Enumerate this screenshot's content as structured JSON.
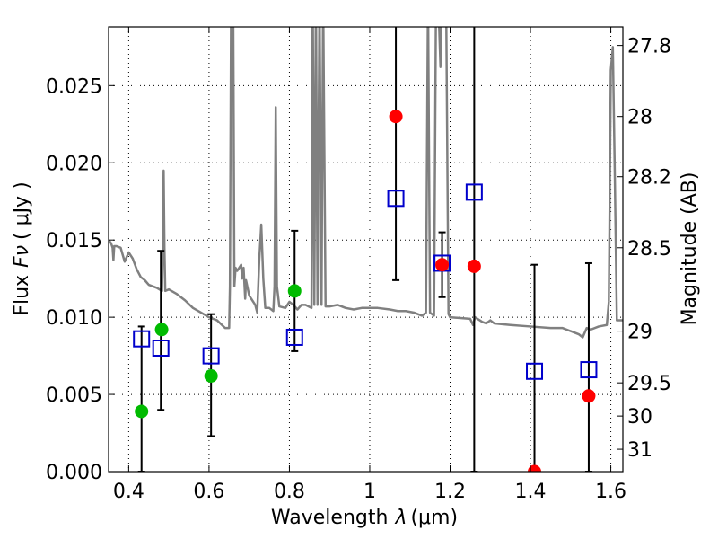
{
  "chart_data": {
    "type": "scatter",
    "title": "",
    "xlabel_text": "Wavelength",
    "xlabel_symbol": "λ",
    "xlabel_unit": "(μm)",
    "ylabel_text": "Flux",
    "ylabel_symbol": "Fν",
    "ylabel_unit": "( μJy )",
    "y2label": "Magnitude (AB)",
    "xlim": [
      0.35,
      1.63
    ],
    "ylim": [
      0.0,
      0.0288
    ],
    "grid": true,
    "x_ticks": [
      "0.4",
      "0.6",
      "0.8",
      "1",
      "1.2",
      "1.4",
      "1.6"
    ],
    "x_tick_values": [
      0.4,
      0.6,
      0.8,
      1.0,
      1.2,
      1.4,
      1.6
    ],
    "y_ticks": [
      "0.000",
      "0.005",
      "0.010",
      "0.015",
      "0.020",
      "0.025"
    ],
    "y_tick_values": [
      0.0,
      0.005,
      0.01,
      0.015,
      0.02,
      0.025
    ],
    "y2_ticks": [
      "27.8",
      "28",
      "28.2",
      "28.5",
      "29",
      "29.5",
      "30",
      "31"
    ],
    "y2_tick_flux": [
      0.0276,
      0.023,
      0.0191,
      0.0145,
      0.0091,
      0.00575,
      0.0036,
      0.00145
    ],
    "colors": {
      "model": "#808080",
      "observed": "#0000cc",
      "green": "#00bb00",
      "red": "#ff0000",
      "errorbar": "#000000"
    },
    "series": [
      {
        "kind": "model",
        "points": [
          [
            0.35,
            0.015
          ],
          [
            0.356,
            0.0148
          ],
          [
            0.36,
            0.0145
          ],
          [
            0.362,
            0.0137
          ],
          [
            0.364,
            0.0146
          ],
          [
            0.37,
            0.0146
          ],
          [
            0.38,
            0.0145
          ],
          [
            0.39,
            0.0136
          ],
          [
            0.4,
            0.0142
          ],
          [
            0.41,
            0.0138
          ],
          [
            0.42,
            0.0131
          ],
          [
            0.43,
            0.0126
          ],
          [
            0.44,
            0.0124
          ],
          [
            0.45,
            0.0121
          ],
          [
            0.47,
            0.0119
          ],
          [
            0.483,
            0.0117
          ],
          [
            0.485,
            0.0145
          ],
          [
            0.487,
            0.0195
          ],
          [
            0.489,
            0.0145
          ],
          [
            0.491,
            0.0117
          ],
          [
            0.5,
            0.0118
          ],
          [
            0.52,
            0.0115
          ],
          [
            0.54,
            0.0111
          ],
          [
            0.56,
            0.0106
          ],
          [
            0.58,
            0.0103
          ],
          [
            0.6,
            0.01
          ],
          [
            0.62,
            0.0098
          ],
          [
            0.64,
            0.0093
          ],
          [
            0.65,
            0.0093
          ],
          [
            0.652,
            0.012
          ],
          [
            0.655,
            0.031
          ],
          [
            0.66,
            0.031
          ],
          [
            0.663,
            0.012
          ],
          [
            0.666,
            0.0132
          ],
          [
            0.67,
            0.013
          ],
          [
            0.68,
            0.0134
          ],
          [
            0.682,
            0.0125
          ],
          [
            0.686,
            0.0132
          ],
          [
            0.69,
            0.0112
          ],
          [
            0.692,
            0.0124
          ],
          [
            0.7,
            0.0114
          ],
          [
            0.71,
            0.011
          ],
          [
            0.715,
            0.0108
          ],
          [
            0.72,
            0.0103
          ],
          [
            0.725,
            0.0137
          ],
          [
            0.73,
            0.016
          ],
          [
            0.735,
            0.0125
          ],
          [
            0.74,
            0.0106
          ],
          [
            0.75,
            0.0106
          ],
          [
            0.76,
            0.0104
          ],
          [
            0.763,
            0.012
          ],
          [
            0.766,
            0.0236
          ],
          [
            0.769,
            0.012
          ],
          [
            0.775,
            0.0107
          ],
          [
            0.79,
            0.0106
          ],
          [
            0.8,
            0.011
          ],
          [
            0.81,
            0.0108
          ],
          [
            0.82,
            0.0105
          ],
          [
            0.83,
            0.0108
          ],
          [
            0.84,
            0.0108
          ],
          [
            0.855,
            0.0106
          ],
          [
            0.858,
            0.031
          ],
          [
            0.862,
            0.0108
          ],
          [
            0.866,
            0.031
          ],
          [
            0.87,
            0.0108
          ],
          [
            0.875,
            0.031
          ],
          [
            0.88,
            0.0108
          ],
          [
            0.884,
            0.031
          ],
          [
            0.89,
            0.0107
          ],
          [
            0.9,
            0.0107
          ],
          [
            0.92,
            0.0108
          ],
          [
            0.94,
            0.0106
          ],
          [
            0.96,
            0.0105
          ],
          [
            0.98,
            0.0106
          ],
          [
            1.0,
            0.0106
          ],
          [
            1.02,
            0.0106
          ],
          [
            1.05,
            0.0105
          ],
          [
            1.07,
            0.0104
          ],
          [
            1.09,
            0.0104
          ],
          [
            1.11,
            0.0103
          ],
          [
            1.13,
            0.0101
          ],
          [
            1.14,
            0.0103
          ],
          [
            1.145,
            0.031
          ],
          [
            1.15,
            0.0103
          ],
          [
            1.16,
            0.0101
          ],
          [
            1.165,
            0.031
          ],
          [
            1.17,
            0.031
          ],
          [
            1.176,
            0.0262
          ],
          [
            1.18,
            0.031
          ],
          [
            1.19,
            0.031
          ],
          [
            1.196,
            0.0102
          ],
          [
            1.2,
            0.01
          ],
          [
            1.25,
            0.0099
          ],
          [
            1.257,
            0.0095
          ],
          [
            1.262,
            0.01
          ],
          [
            1.28,
            0.0097
          ],
          [
            1.29,
            0.0096
          ],
          [
            1.3,
            0.0098
          ],
          [
            1.31,
            0.0096
          ],
          [
            1.35,
            0.0095
          ],
          [
            1.4,
            0.0094
          ],
          [
            1.45,
            0.0093
          ],
          [
            1.48,
            0.0093
          ],
          [
            1.5,
            0.0091
          ],
          [
            1.52,
            0.0089
          ],
          [
            1.53,
            0.0087
          ],
          [
            1.54,
            0.0093
          ],
          [
            1.55,
            0.0092
          ],
          [
            1.57,
            0.0094
          ],
          [
            1.59,
            0.0095
          ],
          [
            1.595,
            0.011
          ],
          [
            1.6,
            0.026
          ],
          [
            1.605,
            0.0275
          ],
          [
            1.61,
            0.019
          ],
          [
            1.615,
            0.0098
          ],
          [
            1.63,
            0.0098
          ]
        ]
      },
      {
        "kind": "observed",
        "points": [
          {
            "x": 0.432,
            "y": 0.0086,
            "err": [
              0.0,
              0.0094
            ]
          },
          {
            "x": 0.48,
            "y": 0.008,
            "err": [
              0.004,
              0.0143
            ]
          },
          {
            "x": 0.605,
            "y": 0.0075,
            "err": [
              0.0023,
              0.0102
            ]
          },
          {
            "x": 0.813,
            "y": 0.0087,
            "err": [
              0.0078,
              0.0156
            ]
          },
          {
            "x": 1.065,
            "y": 0.0177,
            "err": [
              0.0124,
              0.0315
            ]
          },
          {
            "x": 1.18,
            "y": 0.0135,
            "err": [
              0.0113,
              0.0155
            ]
          },
          {
            "x": 1.26,
            "y": 0.0181,
            "err": [
              0.0,
              0.0315
            ]
          },
          {
            "x": 1.41,
            "y": 0.0065,
            "err": [
              0.0,
              0.0134
            ]
          },
          {
            "x": 1.545,
            "y": 0.0066,
            "err": [
              0.0,
              0.0135
            ]
          }
        ]
      },
      {
        "kind": "green",
        "points": [
          {
            "x": 0.432,
            "y": 0.0039
          },
          {
            "x": 0.482,
            "y": 0.0092
          },
          {
            "x": 0.605,
            "y": 0.0062
          },
          {
            "x": 0.813,
            "y": 0.0117
          }
        ]
      },
      {
        "kind": "red",
        "points": [
          {
            "x": 1.065,
            "y": 0.023
          },
          {
            "x": 1.18,
            "y": 0.0134
          },
          {
            "x": 1.26,
            "y": 0.0133
          },
          {
            "x": 1.41,
            "y": 0.0
          },
          {
            "x": 1.545,
            "y": 0.0049
          }
        ]
      }
    ]
  }
}
